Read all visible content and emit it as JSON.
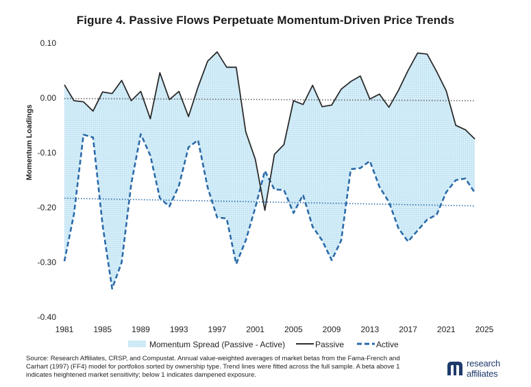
{
  "chart_data": {
    "type": "line",
    "title": "Figure 4. Passive Flows Perpetuate Momentum-Driven Price Trends",
    "ylabel": "Momentum Loadings",
    "xlabel": "",
    "xlim": [
      1981,
      2025
    ],
    "ylim": [
      -0.4,
      0.1
    ],
    "x_ticks": [
      "1981",
      "1985",
      "1989",
      "1993",
      "1997",
      "2001",
      "2005",
      "2009",
      "2013",
      "2017",
      "2021",
      "2025"
    ],
    "y_ticks": [
      "0.10",
      "0.00",
      "-0.10",
      "-0.20",
      "-0.30",
      "-0.40"
    ],
    "x": [
      1981,
      1982,
      1983,
      1984,
      1985,
      1986,
      1987,
      1988,
      1989,
      1990,
      1991,
      1992,
      1993,
      1994,
      1995,
      1996,
      1997,
      1998,
      1999,
      2000,
      2001,
      2002,
      2003,
      2004,
      2005,
      2006,
      2007,
      2008,
      2009,
      2010,
      2011,
      2012,
      2013,
      2014,
      2015,
      2016,
      2017,
      2018,
      2019,
      2020,
      2021,
      2022,
      2023,
      2024
    ],
    "series": [
      {
        "name": "Passive",
        "style": "solid",
        "color": "#2b2b2b",
        "values": [
          0.024,
          -0.005,
          -0.007,
          -0.024,
          0.011,
          0.008,
          0.032,
          -0.005,
          0.012,
          -0.038,
          0.046,
          -0.003,
          0.012,
          -0.034,
          0.02,
          0.067,
          0.084,
          0.056,
          0.056,
          -0.062,
          -0.112,
          -0.205,
          -0.103,
          -0.085,
          -0.005,
          -0.012,
          0.023,
          -0.016,
          -0.013,
          0.016,
          0.03,
          0.04,
          -0.002,
          0.007,
          -0.017,
          0.014,
          0.05,
          0.082,
          0.08,
          0.048,
          0.013,
          -0.05,
          -0.058,
          -0.075
        ]
      },
      {
        "name": "Active",
        "style": "dashed",
        "color": "#2a6aa8",
        "values": [
          -0.298,
          -0.212,
          -0.067,
          -0.072,
          -0.232,
          -0.348,
          -0.3,
          -0.157,
          -0.066,
          -0.105,
          -0.183,
          -0.198,
          -0.16,
          -0.09,
          -0.077,
          -0.163,
          -0.218,
          -0.22,
          -0.303,
          -0.26,
          -0.2,
          -0.133,
          -0.167,
          -0.168,
          -0.21,
          -0.177,
          -0.235,
          -0.26,
          -0.296,
          -0.26,
          -0.13,
          -0.128,
          -0.115,
          -0.162,
          -0.19,
          -0.238,
          -0.262,
          -0.242,
          -0.222,
          -0.213,
          -0.172,
          -0.15,
          -0.147,
          -0.173
        ]
      }
    ],
    "trend_lines": [
      {
        "series": "Passive",
        "style": "dotted",
        "color": "#666666",
        "from": [
          1981,
          -0.001
        ],
        "to": [
          2024,
          -0.005
        ]
      },
      {
        "series": "Active",
        "style": "dotted",
        "color": "#2a6aa8",
        "from": [
          1981,
          -0.183
        ],
        "to": [
          2024,
          -0.197
        ]
      }
    ],
    "fill": {
      "label": "Momentum Spread (Passive - Active)",
      "color": "#cfeaf7"
    },
    "legend": {
      "placement": "bottom",
      "items": [
        "Momentum Spread (Passive - Active)",
        "Passive",
        "Active"
      ]
    },
    "grid": false
  },
  "source_note": "Source: Research Affiliates, CRSP, and Compustat. Annual value-weighted averages of market betas from the Fama-French and Carhart (1997) (FF4) model for portfolios sorted by ownership type. Trend lines were fitted across the full sample. A beta above 1 indicates heightened market sensitivity; below 1 indicates dampened exposure.",
  "logo": {
    "line1": "research",
    "line2": "affiliates",
    "icon": "research-affiliates-logo-icon"
  }
}
